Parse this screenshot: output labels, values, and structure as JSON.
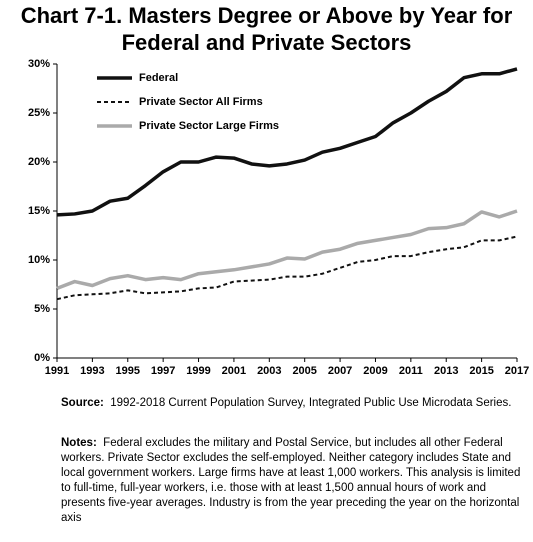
{
  "chart_data": {
    "type": "line",
    "title": "Chart 7-1.  Masters Degree or Above by Year for Federal and Private Sectors",
    "x": [
      1991,
      1992,
      1993,
      1994,
      1995,
      1996,
      1997,
      1998,
      1999,
      2000,
      2001,
      2002,
      2003,
      2004,
      2005,
      2006,
      2007,
      2008,
      2009,
      2010,
      2011,
      2012,
      2013,
      2014,
      2015,
      2016,
      2017
    ],
    "series": [
      {
        "name": "Federal",
        "color": "#111111",
        "width": 3.5,
        "dashed": false,
        "values": [
          14.6,
          14.7,
          15.0,
          16.0,
          16.3,
          17.6,
          19.0,
          20.0,
          20.0,
          20.5,
          20.4,
          19.8,
          19.6,
          19.8,
          20.2,
          21.0,
          21.4,
          22.0,
          22.6,
          24.0,
          25.0,
          26.2,
          27.2,
          28.6,
          29.0,
          29.0,
          29.5
        ]
      },
      {
        "name": "Private Sector All Firms",
        "color": "#111111",
        "width": 2,
        "dashed": true,
        "values": [
          6.0,
          6.4,
          6.5,
          6.6,
          6.9,
          6.6,
          6.7,
          6.8,
          7.1,
          7.2,
          7.8,
          7.9,
          8.0,
          8.3,
          8.3,
          8.6,
          9.2,
          9.8,
          10.0,
          10.4,
          10.4,
          10.8,
          11.1,
          11.3,
          12.0,
          12.0,
          12.4
        ]
      },
      {
        "name": "Private Sector Large Firms",
        "color": "#aaaaaa",
        "width": 3.5,
        "dashed": false,
        "values": [
          7.1,
          7.8,
          7.4,
          8.1,
          8.4,
          8.0,
          8.2,
          8.0,
          8.6,
          8.8,
          9.0,
          9.3,
          9.6,
          10.2,
          10.1,
          10.8,
          11.1,
          11.7,
          12.0,
          12.3,
          12.6,
          13.2,
          13.3,
          13.7,
          14.9,
          14.4,
          15.0
        ]
      }
    ],
    "xlim": [
      1991,
      2017
    ],
    "xticks": [
      1991,
      1993,
      1995,
      1997,
      1999,
      2001,
      2003,
      2005,
      2007,
      2009,
      2011,
      2013,
      2015,
      2017
    ],
    "ylim": [
      0,
      30
    ],
    "yticks": [
      {
        "value": 0,
        "label": "0%"
      },
      {
        "value": 5,
        "label": "5%"
      },
      {
        "value": 10,
        "label": "10%"
      },
      {
        "value": 15,
        "label": "15%"
      },
      {
        "value": 20,
        "label": "20%"
      },
      {
        "value": 25,
        "label": "25%"
      },
      {
        "value": 30,
        "label": "30%"
      }
    ],
    "legend": "top-left",
    "source": {
      "label": "Source:",
      "text": "1992-2018 Current Population Survey, Integrated Public Use Microdata Series."
    },
    "notes": {
      "label": "Notes:",
      "text": "Federal excludes the military and Postal Service, but includes all other Federal workers.  Private Sector excludes the self-employed.  Neither category includes State and local government workers. Large firms have at least 1,000 workers. This analysis is limited to full-time, full-year workers, i.e. those with at least 1,500 annual hours of work and presents five-year  averages.  Industry is from the year preceding the year on the horizontal axis"
    }
  }
}
